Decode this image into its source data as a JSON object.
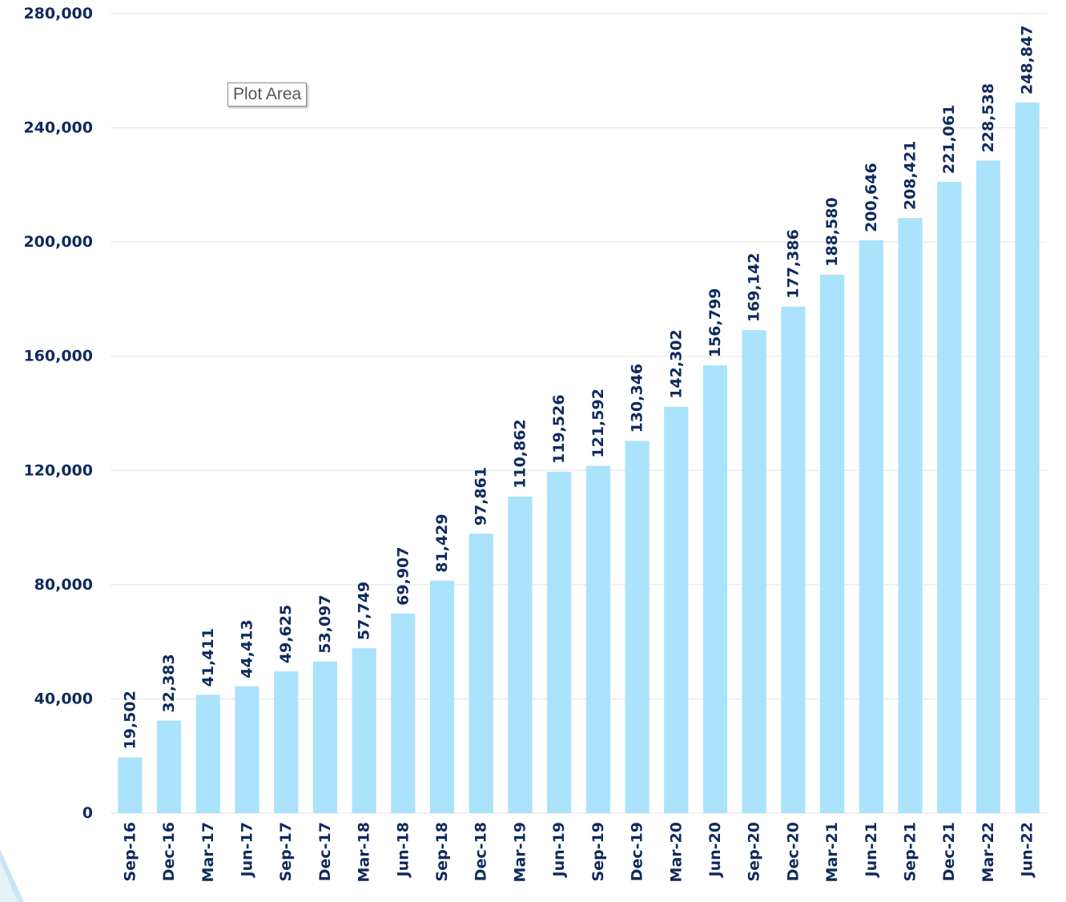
{
  "tooltip": "Plot Area",
  "colors": {
    "bar": "#aae3fb",
    "text": "#102a5c",
    "grid": "#e3e3e3",
    "deco": "#cfe4f2"
  },
  "chart_data": {
    "type": "bar",
    "title": "",
    "xlabel": "",
    "ylabel": "",
    "ylim": [
      0,
      280000
    ],
    "yticks": [
      "0",
      "40,000",
      "80,000",
      "120,000",
      "160,000",
      "200,000",
      "240,000",
      "280,000"
    ],
    "grid": true,
    "legend": "none",
    "categories": [
      "Sep-16",
      "Dec-16",
      "Mar-17",
      "Jun-17",
      "Sep-17",
      "Dec-17",
      "Mar-18",
      "Jun-18",
      "Sep-18",
      "Dec-18",
      "Mar-19",
      "Jun-19",
      "Sep-19",
      "Dec-19",
      "Mar-20",
      "Jun-20",
      "Sep-20",
      "Dec-20",
      "Mar-21",
      "Jun-21",
      "Sep-21",
      "Dec-21",
      "Mar-22",
      "Jun-22"
    ],
    "values": [
      19502,
      32383,
      41411,
      44413,
      49625,
      53097,
      57749,
      69907,
      81429,
      97861,
      110862,
      119526,
      121592,
      130346,
      142302,
      156799,
      169142,
      177386,
      188580,
      200646,
      208421,
      221061,
      228538,
      248847
    ],
    "labels": [
      "19,502",
      "32,383",
      "41,411",
      "44,413",
      "49,625",
      "53,097",
      "57,749",
      "69,907",
      "81,429",
      "97,861",
      "110,862",
      "119,526",
      "121,592",
      "130,346",
      "142,302",
      "156,799",
      "169,142",
      "177,386",
      "188,580",
      "200,646",
      "208,421",
      "221,061",
      "228,538",
      "248,847"
    ]
  }
}
